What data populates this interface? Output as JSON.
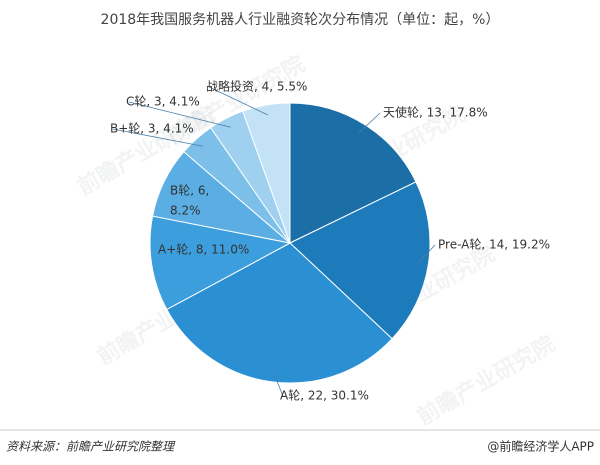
{
  "chart_data": {
    "type": "pie",
    "title": "2018年我国服务机器人行业融资轮次分布情况（单位：起，%）",
    "categories": [
      "天使轮",
      "Pre-A轮",
      "A轮",
      "A+轮",
      "B轮",
      "B+轮",
      "C轮",
      "战略投资"
    ],
    "values": [
      13,
      14,
      22,
      8,
      6,
      3,
      3,
      4
    ],
    "value_labels": [
      "天使轮, 13, 17.8%",
      "Pre-A轮, 14, 19.2%",
      "A轮, 22, 30.1%",
      "A+轮, 8, 11.0%",
      [
        "B轮, 6,",
        "8.2%"
      ],
      "B+轮, 3, 4.1%",
      "C轮, 3, 4.1%",
      "战略投资, 4, 5.5%"
    ],
    "colors": [
      "#1c6ea6",
      "#1e7bbb",
      "#2b8fd3",
      "#3d9edd",
      "#5aaee3",
      "#7cbfe9",
      "#9fd0f0",
      "#c3e2f6"
    ],
    "source": "资料来源：前瞻产业研究院整理",
    "footer": "@前瞻经济学人APP",
    "watermark": "前瞻产业研究院"
  }
}
